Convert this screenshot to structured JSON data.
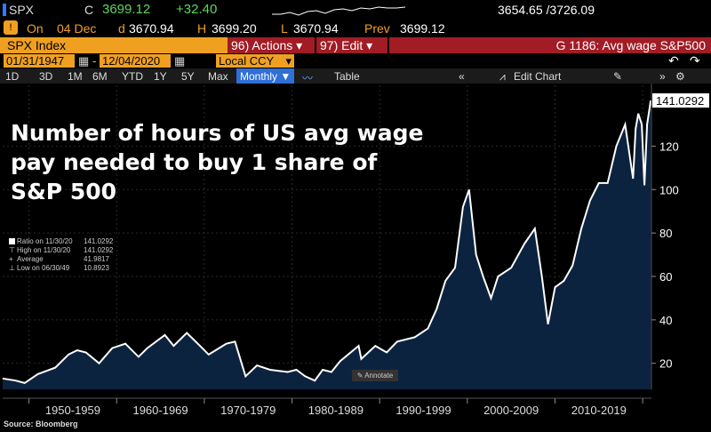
{
  "header": {
    "ticker": "SPX",
    "c_label": "C",
    "price": "3699.12",
    "change": "+32.40",
    "range": "3654.65 /3726.09",
    "on_label": "On",
    "date": "04 Dec",
    "d_label": "d",
    "open": "3670.94",
    "h_label": "H",
    "high": "3699.20",
    "l_label": "L",
    "low": "3670.94",
    "prev_label": "Prev",
    "prev": "3699.12"
  },
  "toolbar": {
    "security": "SPX Index",
    "actions_label": "96) Actions ▾",
    "edit_label": "97) Edit ▾",
    "gtitle": "G 1186: Avg wage S&P500",
    "start_date": "01/31/1947",
    "end_date": "12/04/2020",
    "currency": "Local CCY",
    "periods": [
      "1D",
      "3D",
      "1M",
      "6M",
      "YTD",
      "1Y",
      "5Y",
      "Max"
    ],
    "frequency": "Monthly ▼",
    "table_label": "Table",
    "edit_chart_label": "Edit Chart"
  },
  "chart_title": "Number of hours of US avg wage pay needed to buy 1 share of S&P 500",
  "legend": [
    {
      "name": "Ratio on 11/30/20",
      "value": "141.0292"
    },
    {
      "name": "High on 11/30/20",
      "value": "141.0292"
    },
    {
      "name": "Average",
      "value": "41.9817"
    },
    {
      "name": "Low on 06/30/49",
      "value": "10.8923"
    }
  ],
  "annotate_label": "Annotate",
  "source": "Source: Bloomberg",
  "colors": {
    "accent": "#f0a020",
    "red": "#a11c25",
    "line": "#ffffff",
    "area": "#0c2340",
    "up": "#5cd65c"
  },
  "chart_data": {
    "type": "area",
    "title": "Number of hours of US avg wage pay needed to buy 1 share of S&P 500",
    "ylabel": "",
    "xlabel": "",
    "ylim": [
      8,
      148
    ],
    "xlim": [
      1947.0,
      2021.0
    ],
    "yticks": [
      20,
      40,
      60,
      80,
      100,
      120
    ],
    "x_tick_labels": [
      "1950-1959",
      "1960-1969",
      "1970-1979",
      "1980-1989",
      "1990-1999",
      "2000-2009",
      "2010-2019"
    ],
    "last_value_label": "141.0292",
    "x": [
      1947.0,
      1948.5,
      1949.5,
      1951,
      1953,
      1954.5,
      1955.5,
      1956.5,
      1958,
      1959.5,
      1961,
      1962.5,
      1963.5,
      1965.5,
      1966.5,
      1968,
      1969.5,
      1970.5,
      1972.5,
      1973.5,
      1974.7,
      1976,
      1977.5,
      1979.5,
      1980.5,
      1981.5,
      1982.6,
      1983.5,
      1984.5,
      1985.5,
      1987.6,
      1987.9,
      1989.5,
      1990.8,
      1992,
      1994,
      1995.5,
      1996.5,
      1997.5,
      1998.6,
      1999.5,
      2000.2,
      2001,
      2001.8,
      2002.7,
      2003.5,
      2005,
      2006.5,
      2007.7,
      2008.5,
      2009.2,
      2010,
      2011,
      2012,
      2013,
      2014,
      2015,
      2016,
      2017,
      2018,
      2018.9,
      2019.2,
      2019.5,
      2019.9,
      2020.2,
      2020.5,
      2020.92
    ],
    "y": [
      13,
      12,
      10.9,
      15,
      18,
      24,
      26,
      25,
      20,
      27,
      29,
      23,
      27,
      33,
      28,
      34,
      28,
      24,
      29,
      30,
      14,
      19,
      17,
      16,
      17,
      14,
      12,
      17,
      16,
      21,
      28,
      22,
      28,
      25,
      30,
      32,
      36,
      45,
      58,
      64,
      92,
      100,
      70,
      60,
      50,
      60,
      64,
      75,
      82,
      60,
      38,
      55,
      58,
      65,
      82,
      95,
      103,
      103,
      120,
      130,
      105,
      128,
      135,
      130,
      102,
      130,
      141.0292
    ]
  }
}
